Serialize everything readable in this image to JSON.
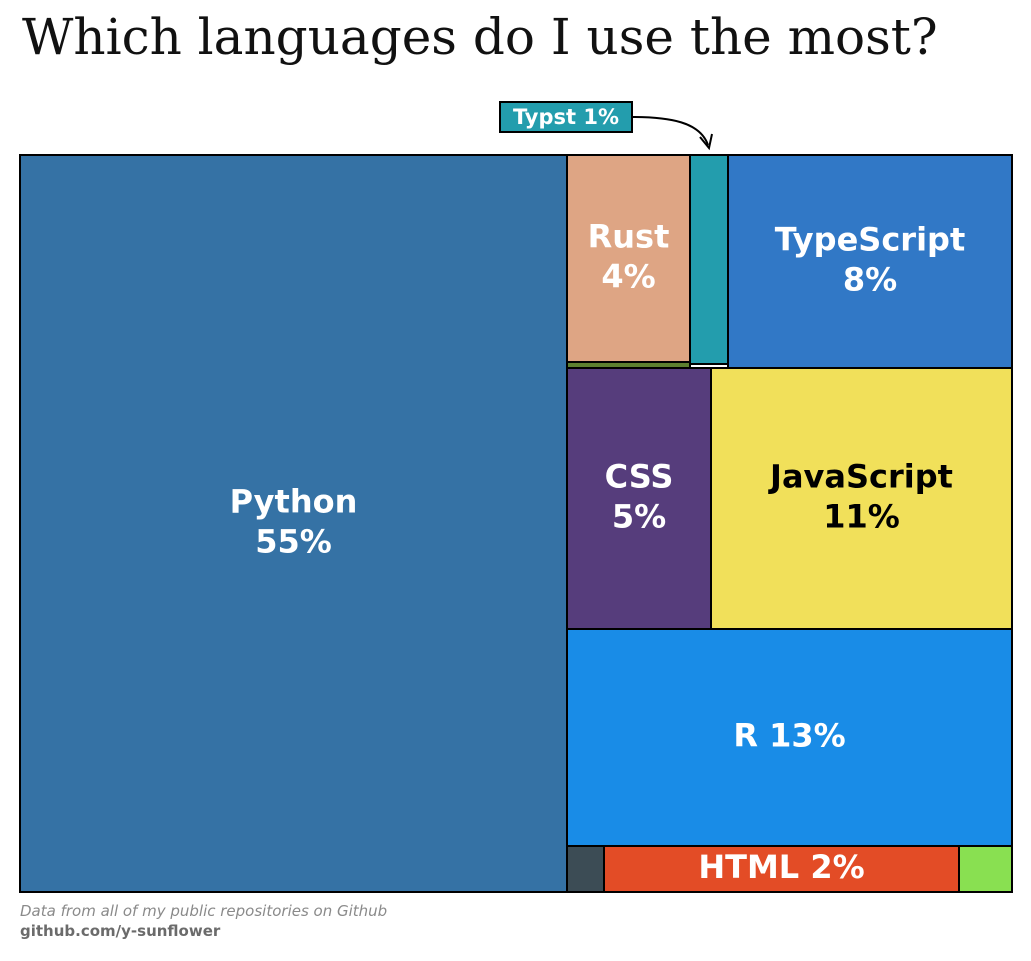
{
  "title": "Which languages do I use the most?",
  "footer": {
    "note": "Data from all of my public repositories on Github",
    "source": "github.com/y-sunflower"
  },
  "chart_data": {
    "type": "treemap",
    "title": "Which languages do I use the most?",
    "unit": "%",
    "items": [
      {
        "name": "Python",
        "value": 55,
        "label": "Python\n55%",
        "color": "#3572A5",
        "text_color": "#ffffff"
      },
      {
        "name": "Rust",
        "value": 4,
        "label": "Rust\n4%",
        "color": "#DEA584",
        "text_color": "#ffffff"
      },
      {
        "name": "Typst",
        "value": 1,
        "label": "Typst  1%",
        "color": "#239DAD",
        "text_color": "#ffffff",
        "callout": true
      },
      {
        "name": "TypeScript",
        "value": 8,
        "label": "TypeScript\n8%",
        "color": "#3178C6",
        "text_color": "#ffffff"
      },
      {
        "name": "CSS",
        "value": 5,
        "label": "CSS\n5%",
        "color": "#563D7C",
        "text_color": "#ffffff"
      },
      {
        "name": "JavaScript",
        "value": 11,
        "label": "JavaScript\n11%",
        "color": "#F1E05A",
        "text_color": "#000000"
      },
      {
        "name": "R",
        "value": 13,
        "label": "R  13%",
        "color": "#198CE7",
        "text_color": "#ffffff"
      },
      {
        "name": "HTML",
        "value": 2,
        "label": "HTML  2%",
        "color": "#E34C26",
        "text_color": "#ffffff"
      },
      {
        "name": "other-dark-slate",
        "value": null,
        "label": "",
        "color": "#3C4C55",
        "text_color": "#ffffff"
      },
      {
        "name": "other-light-green",
        "value": null,
        "label": "",
        "color": "#89E051",
        "text_color": "#ffffff"
      },
      {
        "name": "other-dark-green",
        "value": null,
        "label": "",
        "color": "#5C7F2F",
        "text_color": "#ffffff"
      }
    ]
  }
}
